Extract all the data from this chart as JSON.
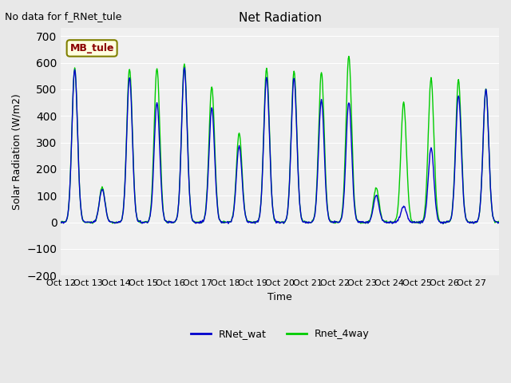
{
  "title": "Net Radiation",
  "xlabel": "Time",
  "ylabel": "Solar Radiation (W/m2)",
  "suptitle": "No data for f_RNet_tule",
  "watermark_text": "MB_tule",
  "ylim": [
    -200,
    730
  ],
  "yticks": [
    -200,
    -100,
    0,
    100,
    200,
    300,
    400,
    500,
    600,
    700
  ],
  "x_tick_labels": [
    "Oct 12",
    "Oct 13",
    "Oct 14",
    "Oct 15",
    "Oct 16",
    "Oct 17",
    "Oct 18",
    "Oct 19",
    "Oct 20",
    "Oct 21",
    "Oct 22",
    "Oct 23",
    "Oct 24",
    "Oct 25",
    "Oct 26",
    "Oct 27"
  ],
  "color_blue": "#0000cc",
  "color_green": "#00cc00",
  "legend_labels": [
    "RNet_wat",
    "Rnet_4way"
  ],
  "bg_color": "#e8e8e8",
  "plot_bg_color": "#f0f0f0",
  "n_days": 16,
  "night_base": -80,
  "day_peaks_blue": [
    575,
    125,
    545,
    450,
    580,
    430,
    285,
    545,
    545,
    460,
    455,
    100,
    60,
    280,
    480,
    500
  ],
  "day_peaks_green": [
    580,
    130,
    580,
    580,
    595,
    510,
    335,
    580,
    570,
    565,
    625,
    130,
    450,
    540,
    535,
    500
  ]
}
